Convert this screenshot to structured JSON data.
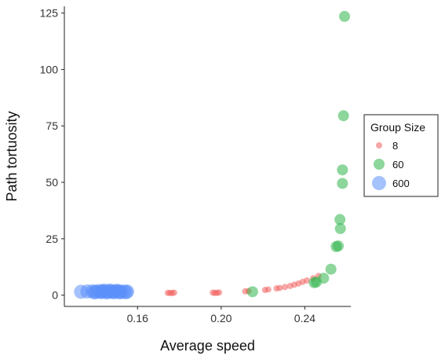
{
  "chart_data": {
    "type": "scatter",
    "xlabel": "Average speed",
    "ylabel": "Path tortuosity",
    "xlim": [
      0.125,
      0.262
    ],
    "ylim": [
      -5,
      128
    ],
    "x_ticks": [
      0.16,
      0.2,
      0.24
    ],
    "x_tick_labels": [
      "0.16",
      "0.20",
      "0.24"
    ],
    "y_ticks": [
      0,
      25,
      50,
      75,
      100,
      125
    ],
    "y_tick_labels": [
      "0",
      "25",
      "50",
      "75",
      "100",
      "125"
    ],
    "grid": false,
    "legend": {
      "title": "Group Size",
      "placement": "right",
      "entries": [
        "8",
        "60",
        "600"
      ]
    },
    "series": [
      {
        "name": "8",
        "color": "#f0615f",
        "points": [
          [
            0.1745,
            1.0
          ],
          [
            0.1755,
            1.0
          ],
          [
            0.1765,
            0.9
          ],
          [
            0.1775,
            1.1
          ],
          [
            0.196,
            1.1
          ],
          [
            0.197,
            1.0
          ],
          [
            0.198,
            1.0
          ],
          [
            0.199,
            1.2
          ],
          [
            0.2115,
            1.7
          ],
          [
            0.213,
            1.8
          ],
          [
            0.221,
            2.3
          ],
          [
            0.2225,
            2.5
          ],
          [
            0.2265,
            3.0
          ],
          [
            0.228,
            3.2
          ],
          [
            0.2305,
            3.6
          ],
          [
            0.233,
            4.1
          ],
          [
            0.235,
            4.6
          ],
          [
            0.237,
            5.2
          ],
          [
            0.239,
            5.9
          ],
          [
            0.241,
            6.5
          ],
          [
            0.244,
            7.5
          ],
          [
            0.2465,
            8.5
          ]
        ]
      },
      {
        "name": "60",
        "color": "#2fb44a",
        "points": [
          [
            0.215,
            1.5
          ],
          [
            0.2445,
            5.5
          ],
          [
            0.2455,
            5.8
          ],
          [
            0.249,
            7.5
          ],
          [
            0.2525,
            11.5
          ],
          [
            0.255,
            21.5
          ],
          [
            0.256,
            21.8
          ],
          [
            0.257,
            29.5
          ],
          [
            0.2568,
            33.5
          ],
          [
            0.258,
            49.5
          ],
          [
            0.258,
            55.5
          ],
          [
            0.2585,
            79.5
          ],
          [
            0.259,
            123.5
          ]
        ]
      },
      {
        "name": "600",
        "color": "#5b8ff9",
        "points": [
          [
            0.133,
            1.5
          ],
          [
            0.136,
            1.6
          ],
          [
            0.1385,
            1.7
          ],
          [
            0.14,
            1.5
          ],
          [
            0.1415,
            1.8
          ],
          [
            0.143,
            1.6
          ],
          [
            0.1445,
            1.5
          ],
          [
            0.146,
            1.7
          ],
          [
            0.1475,
            1.6
          ],
          [
            0.149,
            1.5
          ],
          [
            0.1505,
            1.7
          ],
          [
            0.152,
            1.6
          ],
          [
            0.1535,
            1.5
          ],
          [
            0.155,
            1.6
          ],
          [
            0.1395,
            1.2
          ],
          [
            0.1425,
            1.3
          ],
          [
            0.1455,
            1.2
          ],
          [
            0.1485,
            1.3
          ],
          [
            0.1515,
            1.2
          ],
          [
            0.1545,
            1.3
          ],
          [
            0.144,
            2.0
          ],
          [
            0.147,
            2.0
          ],
          [
            0.15,
            1.9
          ]
        ]
      }
    ]
  }
}
